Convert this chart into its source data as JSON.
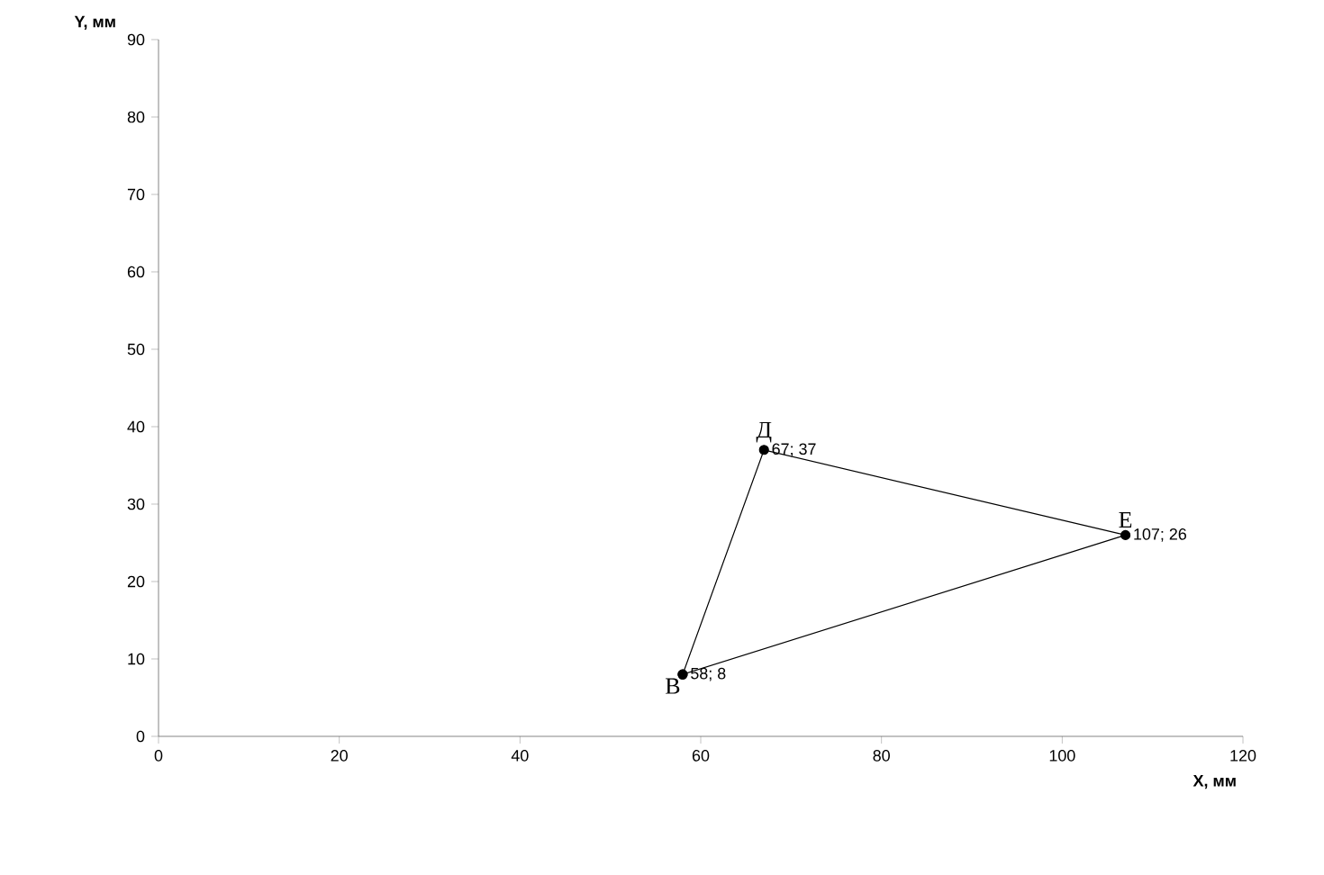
{
  "chart_data": {
    "type": "scatter",
    "xlabel": "X, мм",
    "ylabel": "Y, мм",
    "x": [
      58,
      67,
      107,
      58
    ],
    "values": [
      8,
      37,
      26,
      8
    ],
    "value_labels": [
      "58; 8",
      "67; 37",
      "107; 26",
      null
    ],
    "color": "#000000",
    "marker": "circle",
    "line_style": "solid",
    "xlim": [
      0,
      120
    ],
    "ylim": [
      0,
      90
    ],
    "xticks": [
      0,
      20,
      40,
      60,
      80,
      100,
      120
    ],
    "yticks": [
      0,
      10,
      20,
      30,
      40,
      50,
      60,
      70,
      80,
      90
    ],
    "annotations": [
      {
        "text": "В",
        "x": 58,
        "y": 8
      },
      {
        "text": "Д",
        "x": 67,
        "y": 37
      },
      {
        "text": "Е",
        "x": 107,
        "y": 26
      }
    ]
  }
}
